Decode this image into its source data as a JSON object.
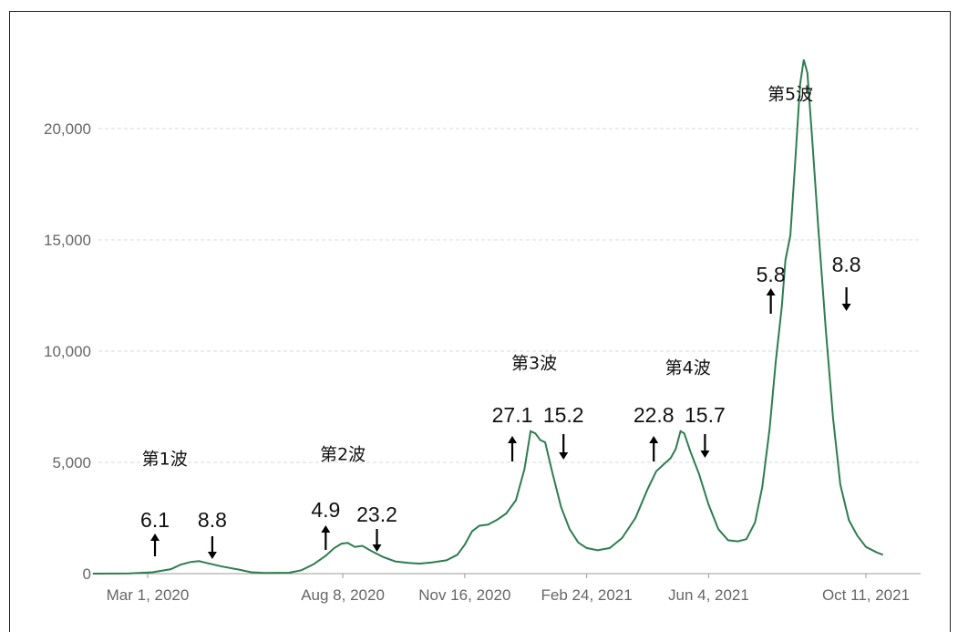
{
  "chart_data": {
    "type": "line",
    "color": "#2e7d4f",
    "y_ticks": [
      {
        "value": 0,
        "label": "0"
      },
      {
        "value": 5000,
        "label": "5,000"
      },
      {
        "value": 10000,
        "label": "10,000"
      },
      {
        "value": 15000,
        "label": "15,000"
      },
      {
        "value": 20000,
        "label": "20,000"
      }
    ],
    "ylim": [
      0,
      23000
    ],
    "grid": true,
    "x_ticks": [
      {
        "date": "2020-03-01",
        "label": "Mar 1, 2020"
      },
      {
        "date": "2020-08-08",
        "label": "Aug 8, 2020"
      },
      {
        "date": "2020-11-16",
        "label": "Nov 16, 2020"
      },
      {
        "date": "2021-02-24",
        "label": "Feb 24, 2021"
      },
      {
        "date": "2021-06-04",
        "label": "Jun 4, 2021"
      },
      {
        "date": "2021-10-11",
        "label": "Oct 11, 2021"
      }
    ],
    "xlim": [
      "2020-01-16",
      "2021-11-30"
    ],
    "series": [
      {
        "points": [
          [
            "2020-01-16",
            0
          ],
          [
            "2020-02-15",
            10
          ],
          [
            "2020-03-05",
            60
          ],
          [
            "2020-03-20",
            200
          ],
          [
            "2020-03-28",
            400
          ],
          [
            "2020-04-05",
            520
          ],
          [
            "2020-04-12",
            560
          ],
          [
            "2020-04-20",
            460
          ],
          [
            "2020-05-01",
            320
          ],
          [
            "2020-05-15",
            180
          ],
          [
            "2020-05-25",
            60
          ],
          [
            "2020-06-05",
            30
          ],
          [
            "2020-06-25",
            40
          ],
          [
            "2020-07-05",
            150
          ],
          [
            "2020-07-15",
            420
          ],
          [
            "2020-07-25",
            800
          ],
          [
            "2020-08-01",
            1150
          ],
          [
            "2020-08-07",
            1350
          ],
          [
            "2020-08-12",
            1380
          ],
          [
            "2020-08-18",
            1200
          ],
          [
            "2020-08-24",
            1250
          ],
          [
            "2020-09-01",
            1000
          ],
          [
            "2020-09-10",
            750
          ],
          [
            "2020-09-20",
            550
          ],
          [
            "2020-10-01",
            480
          ],
          [
            "2020-10-10",
            450
          ],
          [
            "2020-10-20",
            500
          ],
          [
            "2020-11-01",
            600
          ],
          [
            "2020-11-10",
            850
          ],
          [
            "2020-11-16",
            1300
          ],
          [
            "2020-11-22",
            1900
          ],
          [
            "2020-11-28",
            2150
          ],
          [
            "2020-12-05",
            2200
          ],
          [
            "2020-12-12",
            2400
          ],
          [
            "2020-12-20",
            2700
          ],
          [
            "2020-12-28",
            3300
          ],
          [
            "2021-01-04",
            4700
          ],
          [
            "2021-01-09",
            6400
          ],
          [
            "2021-01-13",
            6300
          ],
          [
            "2021-01-17",
            6000
          ],
          [
            "2021-01-21",
            5900
          ],
          [
            "2021-01-27",
            4500
          ],
          [
            "2021-02-03",
            3000
          ],
          [
            "2021-02-10",
            2000
          ],
          [
            "2021-02-17",
            1400
          ],
          [
            "2021-02-24",
            1150
          ],
          [
            "2021-03-05",
            1050
          ],
          [
            "2021-03-15",
            1150
          ],
          [
            "2021-03-25",
            1600
          ],
          [
            "2021-04-05",
            2500
          ],
          [
            "2021-04-15",
            3800
          ],
          [
            "2021-04-22",
            4600
          ],
          [
            "2021-04-28",
            4900
          ],
          [
            "2021-05-04",
            5200
          ],
          [
            "2021-05-08",
            5600
          ],
          [
            "2021-05-12",
            6400
          ],
          [
            "2021-05-15",
            6300
          ],
          [
            "2021-05-20",
            5500
          ],
          [
            "2021-05-27",
            4500
          ],
          [
            "2021-06-04",
            3100
          ],
          [
            "2021-06-12",
            2000
          ],
          [
            "2021-06-20",
            1500
          ],
          [
            "2021-06-28",
            1450
          ],
          [
            "2021-07-05",
            1550
          ],
          [
            "2021-07-12",
            2300
          ],
          [
            "2021-07-18",
            3900
          ],
          [
            "2021-07-24",
            6500
          ],
          [
            "2021-07-29",
            9500
          ],
          [
            "2021-08-03",
            12000
          ],
          [
            "2021-08-06",
            14100
          ],
          [
            "2021-08-10",
            15200
          ],
          [
            "2021-08-14",
            18500
          ],
          [
            "2021-08-18",
            22000
          ],
          [
            "2021-08-21",
            23100
          ],
          [
            "2021-08-24",
            22500
          ],
          [
            "2021-08-28",
            19500
          ],
          [
            "2021-09-02",
            15500
          ],
          [
            "2021-09-08",
            11000
          ],
          [
            "2021-09-14",
            7000
          ],
          [
            "2021-09-20",
            4000
          ],
          [
            "2021-09-27",
            2400
          ],
          [
            "2021-10-04",
            1700
          ],
          [
            "2021-10-11",
            1200
          ],
          [
            "2021-10-20",
            950
          ],
          [
            "2021-10-25",
            850
          ]
        ]
      }
    ],
    "wave_labels": [
      {
        "text": "第1波",
        "date": "2020-03-15",
        "value": 4900
      },
      {
        "text": "第2波",
        "date": "2020-08-08",
        "value": 5100
      },
      {
        "text": "第3波",
        "date": "2021-01-12",
        "value": 9200
      },
      {
        "text": "第4波",
        "date": "2021-05-18",
        "value": 9000
      },
      {
        "text": "第5波",
        "date": "2021-08-10",
        "value": 21300
      }
    ],
    "annotations": [
      {
        "value_label": "6.1",
        "direction": "up",
        "date": "2020-03-07"
      },
      {
        "value_label": "8.8",
        "direction": "down",
        "date": "2020-04-23"
      },
      {
        "value_label": "4.9",
        "direction": "up",
        "date": "2020-07-25"
      },
      {
        "value_label": "23.2",
        "direction": "down",
        "date": "2020-09-05"
      },
      {
        "value_label": "27.1",
        "direction": "up",
        "date": "2020-12-25"
      },
      {
        "value_label": "15.2",
        "direction": "down",
        "date": "2021-02-05"
      },
      {
        "value_label": "22.8",
        "direction": "up",
        "date": "2021-04-20"
      },
      {
        "value_label": "15.7",
        "direction": "down",
        "date": "2021-06-01"
      },
      {
        "value_label": "5.8",
        "direction": "up",
        "date": "2021-07-25"
      },
      {
        "value_label": "8.8",
        "direction": "down",
        "date": "2021-09-25"
      }
    ]
  }
}
